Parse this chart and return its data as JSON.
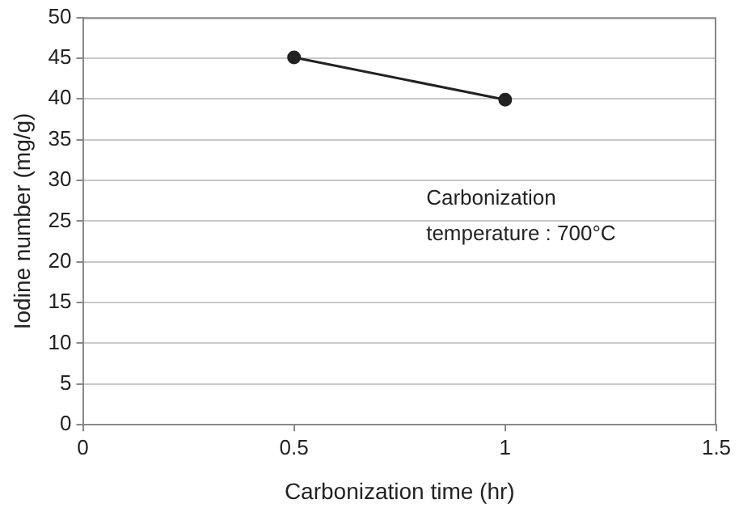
{
  "chart_data": {
    "type": "line",
    "xlabel": "Carbonization time (hr)",
    "ylabel": "Iodine number (mg/g)",
    "x": [
      0.5,
      1
    ],
    "series": [
      {
        "color": "#222222",
        "values": [
          45.1,
          39.9
        ]
      }
    ],
    "xlim": [
      0,
      1.5
    ],
    "xticks": [
      0,
      0.5,
      1,
      1.5
    ],
    "ylim": [
      0,
      50
    ],
    "yticks": [
      0,
      5,
      10,
      15,
      20,
      25,
      30,
      35,
      40,
      45,
      50
    ],
    "grid": "y",
    "legend": false,
    "marker": "circle",
    "line_style": "solid",
    "annotations": [
      "Carbonization\ntemperature : 700°C"
    ]
  }
}
